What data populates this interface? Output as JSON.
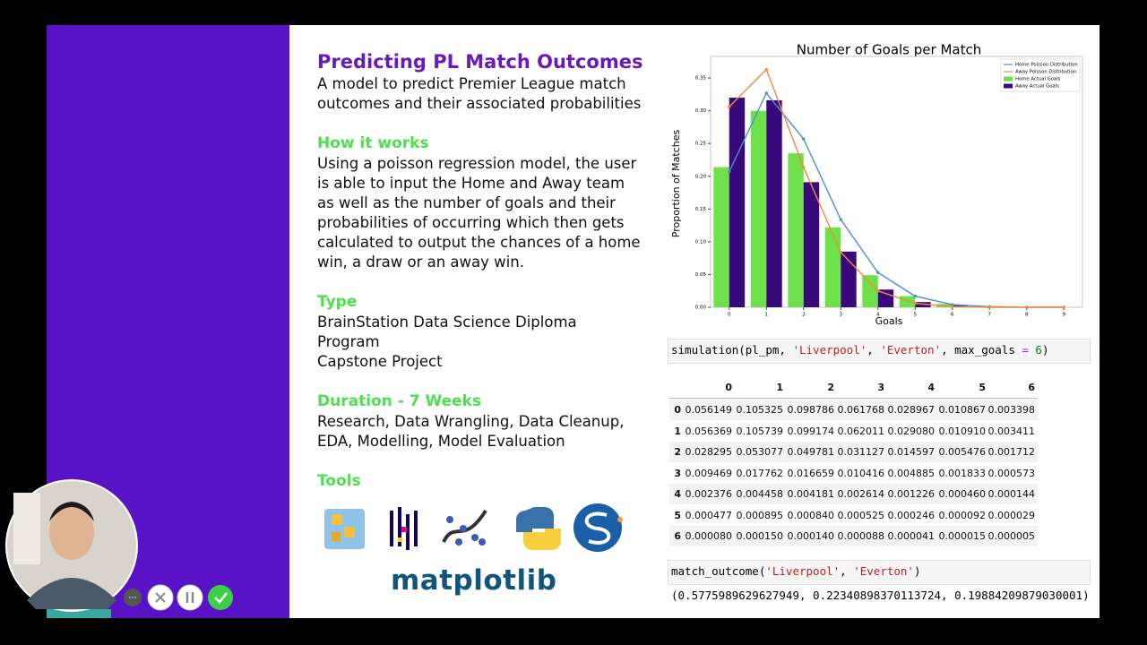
{
  "slide": {
    "title": "Predicting PL Match Outcomes",
    "description": [
      "A model to predict Premier League match",
      "outcomes and their associated probabilities"
    ],
    "sections": [
      {
        "heading": "How it works",
        "lines": [
          "Using a poisson regression model, the user",
          "is able to input the Home and Away team",
          "as well as the number of goals and their",
          "probabilities of occurring which then gets",
          "calculated to output the chances of a home",
          "win, a draw or an away win."
        ]
      },
      {
        "heading": "Type",
        "lines": [
          "BrainStation Data Science Diploma",
          "Program",
          "Capstone Project"
        ]
      },
      {
        "heading": "Duration - 7 Weeks",
        "lines": [
          "Research, Data Wrangling, Data Cleanup,",
          "EDA, Modelling, Model Evaluation"
        ]
      },
      {
        "heading": "Tools",
        "lines": []
      }
    ],
    "tools_logo_text": "matplotlib"
  },
  "chart_data": {
    "type": "bar",
    "title": "Number of Goals per Match",
    "x_label": "Goals",
    "y_label": "Proportion of Matches",
    "x": [
      0,
      1,
      2,
      3,
      4,
      5,
      6,
      7,
      8,
      9
    ],
    "xlim": [
      -0.5,
      9.5
    ],
    "xticks": [
      0,
      1,
      2,
      3,
      4,
      5,
      6,
      7,
      8,
      9
    ],
    "ylim": [
      0,
      0.383
    ],
    "yticks": [
      {
        "value": 0,
        "label": "0.00"
      },
      {
        "value": 0.05,
        "label": "0.05"
      },
      {
        "value": 0.1,
        "label": "0.10"
      },
      {
        "value": 0.15,
        "label": "0.15"
      },
      {
        "value": 0.2,
        "label": "0.20"
      },
      {
        "value": 0.25,
        "label": "0.25"
      },
      {
        "value": 0.3,
        "label": "0.30"
      },
      {
        "value": 0.35,
        "label": "0.35"
      }
    ],
    "grid": false,
    "legend": "upper right",
    "series": [
      {
        "name": "Home Poisson Distribution",
        "type": "line",
        "color": "#4a8fd0",
        "values": [
          0.207,
          0.327,
          0.257,
          0.134,
          0.053,
          0.017,
          0.004,
          0.001,
          0,
          0
        ]
      },
      {
        "name": "Away Poisson Distribution",
        "type": "line",
        "color": "#f08a3c",
        "values": [
          0.306,
          0.363,
          0.214,
          0.084,
          0.025,
          0.006,
          0.001,
          0,
          0,
          0
        ]
      },
      {
        "name": "Home Actual Goals",
        "type": "bar",
        "color": "#6ee04a",
        "values": [
          0.214,
          0.3,
          0.235,
          0.122,
          0.049,
          0.017,
          0.005,
          0.001,
          0,
          0
        ]
      },
      {
        "name": "Away Actual Goals",
        "type": "bar",
        "color": "#38097a",
        "values": [
          0.32,
          0.316,
          0.191,
          0.085,
          0.027,
          0.008,
          0.003,
          0,
          0,
          0
        ]
      }
    ]
  },
  "notebook": {
    "cell_1": [
      {
        "text": "simulation(pl_pm, ",
        "color": "#000000"
      },
      {
        "text": "'Liverpool'",
        "color": "#ba2121"
      },
      {
        "text": ", ",
        "color": "#000000"
      },
      {
        "text": "'Everton'",
        "color": "#ba2121"
      },
      {
        "text": ", max_goals ",
        "color": "#000000"
      },
      {
        "text": "=",
        "color": "#aa22ff"
      },
      {
        "text": " 6",
        "color": "#008000"
      },
      {
        "text": ")",
        "color": "#000000"
      }
    ],
    "table": {
      "columns": [
        "0",
        "1",
        "2",
        "3",
        "4",
        "5",
        "6"
      ],
      "rows": [
        {
          "index": "0",
          "cells": [
            "0.056149",
            "0.105325",
            "0.098786",
            "0.061768",
            "0.028967",
            "0.010867",
            "0.003398"
          ]
        },
        {
          "index": "1",
          "cells": [
            "0.056369",
            "0.105739",
            "0.099174",
            "0.062011",
            "0.029080",
            "0.010910",
            "0.003411"
          ]
        },
        {
          "index": "2",
          "cells": [
            "0.028295",
            "0.053077",
            "0.049781",
            "0.031127",
            "0.014597",
            "0.005476",
            "0.001712"
          ]
        },
        {
          "index": "3",
          "cells": [
            "0.009469",
            "0.017762",
            "0.016659",
            "0.010416",
            "0.004885",
            "0.001833",
            "0.000573"
          ]
        },
        {
          "index": "4",
          "cells": [
            "0.002376",
            "0.004458",
            "0.004181",
            "0.002614",
            "0.001226",
            "0.000460",
            "0.000144"
          ]
        },
        {
          "index": "5",
          "cells": [
            "0.000477",
            "0.000895",
            "0.000840",
            "0.000525",
            "0.000246",
            "0.000092",
            "0.000029"
          ]
        },
        {
          "index": "6",
          "cells": [
            "0.000080",
            "0.000150",
            "0.000140",
            "0.000088",
            "0.000041",
            "0.000015",
            "0.000005"
          ]
        }
      ]
    },
    "cell_2": [
      {
        "text": "match_outcome(",
        "color": "#000000"
      },
      {
        "text": "'Liverpool'",
        "color": "#ba2121"
      },
      {
        "text": ", ",
        "color": "#000000"
      },
      {
        "text": "'Everton'",
        "color": "#ba2121"
      },
      {
        "text": ")",
        "color": "#000000"
      }
    ],
    "output": "(0.5775989629627949, 0.22340898370113724, 0.19884209879030001)"
  }
}
